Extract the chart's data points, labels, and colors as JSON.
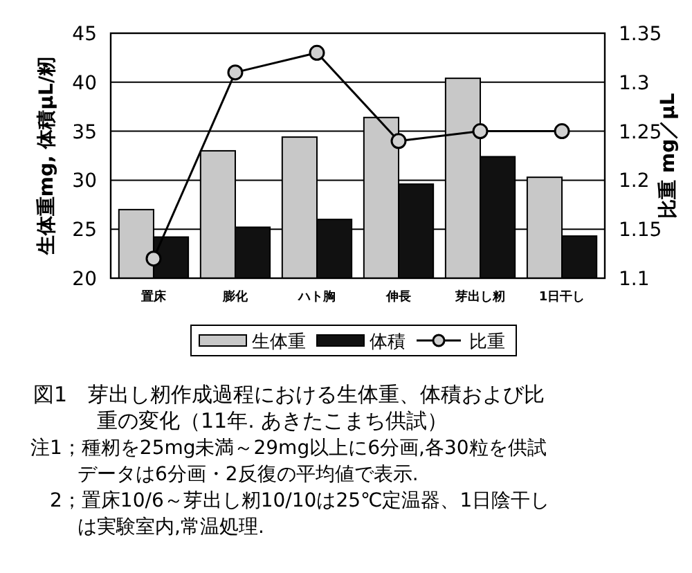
{
  "chart_data": {
    "type": "bar",
    "title": "図1　芽出し籾作成過程における生体重、体積および比重の変化（11年.  あきたこまち供試）",
    "ylabel": "生体重mg, 体積μL/籾",
    "y2label": "比重  mg／μL",
    "categories": [
      "置床",
      "膨化",
      "ハト胸",
      "伸長",
      "芽出し籾",
      "1日干し"
    ],
    "series": [
      {
        "name": "生体重",
        "color": "#c8c8c8",
        "values": [
          27.0,
          33.0,
          34.4,
          36.4,
          40.4,
          30.3
        ]
      },
      {
        "name": "体積",
        "color": "#111111",
        "values": [
          24.2,
          25.2,
          26.0,
          29.6,
          32.4,
          24.3
        ]
      },
      {
        "name": "比重",
        "type": "line",
        "axis": "y2",
        "color": "#000000",
        "values": [
          1.12,
          1.31,
          1.33,
          1.24,
          1.25,
          1.25
        ]
      }
    ],
    "ylim": [
      20,
      45
    ],
    "yticks": [
      20,
      25,
      30,
      35,
      40,
      45
    ],
    "y2lim": [
      1.1,
      1.35
    ],
    "y2ticks": [
      {
        "value": 1.1,
        "label": "1.1"
      },
      {
        "value": 1.15,
        "label": "1.15"
      },
      {
        "value": 1.2,
        "label": "1.2"
      },
      {
        "value": 1.25,
        "label": "1.25"
      },
      {
        "value": 1.3,
        "label": "1.3"
      },
      {
        "value": 1.35,
        "label": "1.35"
      }
    ],
    "grid": "y",
    "legend": "bottom",
    "marker": "circle",
    "line_style": "solid",
    "annotations": [
      "注1；種籾を25mg未満～29mg以上に6分画,各30粒を供試データは6分画・2反復の平均値で表示.",
      "2；置床10/6～芽出し籾10/10は25℃定温器、1日陰干しは実験室内,常温処理."
    ]
  }
}
